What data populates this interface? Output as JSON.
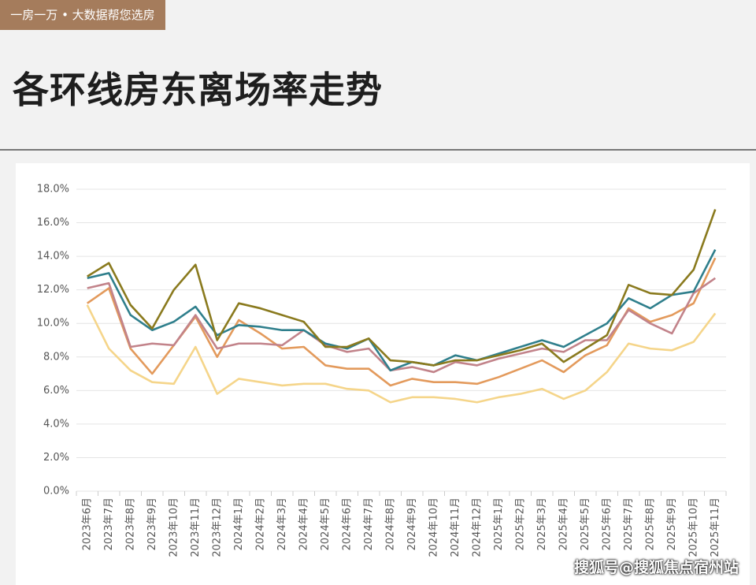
{
  "header": {
    "tag": "一房一万 • 大数据帮您选房",
    "title": "各环线房东离场率走势"
  },
  "watermark": "搜狐号@搜狐焦点宿州站",
  "chart_data": {
    "type": "line",
    "categories": [
      "2023年6月",
      "2023年7月",
      "2023年8月",
      "2023年9月",
      "2023年10月",
      "2023年11月",
      "2023年12月",
      "2024年1月",
      "2024年2月",
      "2024年3月",
      "2024年4月",
      "2024年5月",
      "2024年6月",
      "2024年7月",
      "2024年8月",
      "2024年9月",
      "2024年10月",
      "2024年11月",
      "2024年12月",
      "2025年1月",
      "2025年2月",
      "2025年3月",
      "2025年4月",
      "2025年5月",
      "2025年6月",
      "2025年7月",
      "2025年8月",
      "2025年9月",
      "2025年10月",
      "2025年11月"
    ],
    "series": [
      {
        "color": "#f5d58a",
        "values": [
          11.1,
          8.5,
          7.2,
          6.5,
          6.4,
          8.6,
          5.8,
          6.7,
          6.5,
          6.3,
          6.4,
          6.4,
          6.1,
          6.0,
          5.3,
          5.6,
          5.6,
          5.5,
          5.3,
          5.6,
          5.8,
          6.1,
          5.5,
          6.0,
          7.1,
          8.8,
          8.5,
          8.4,
          8.9,
          10.6
        ]
      },
      {
        "color": "#e39a5c",
        "values": [
          11.2,
          12.1,
          8.5,
          7.0,
          8.7,
          10.4,
          8.0,
          10.2,
          9.4,
          8.5,
          8.6,
          7.5,
          7.3,
          7.3,
          6.3,
          6.7,
          6.5,
          6.5,
          6.4,
          6.8,
          7.3,
          7.8,
          7.1,
          8.1,
          8.7,
          10.9,
          10.1,
          10.5,
          11.2,
          13.9
        ]
      },
      {
        "color": "#c2838a",
        "values": [
          12.1,
          12.4,
          8.6,
          8.8,
          8.7,
          10.5,
          8.5,
          8.8,
          8.8,
          8.7,
          9.6,
          8.7,
          8.3,
          8.5,
          7.2,
          7.4,
          7.1,
          7.7,
          7.5,
          7.9,
          8.2,
          8.5,
          8.3,
          9.0,
          9.0,
          10.8,
          10.0,
          9.4,
          11.8,
          12.7
        ]
      },
      {
        "color": "#2f7f8c",
        "values": [
          12.7,
          13.0,
          10.5,
          9.6,
          10.1,
          11.0,
          9.3,
          9.9,
          9.8,
          9.6,
          9.6,
          8.8,
          8.5,
          9.1,
          7.2,
          7.7,
          7.5,
          8.1,
          7.8,
          8.2,
          8.6,
          9.0,
          8.6,
          9.3,
          10.0,
          11.5,
          10.9,
          11.7,
          11.9,
          14.4
        ]
      },
      {
        "color": "#8a7a1e",
        "values": [
          12.8,
          13.6,
          11.1,
          9.7,
          12.0,
          13.5,
          9.0,
          11.2,
          10.9,
          10.5,
          10.1,
          8.6,
          8.6,
          9.1,
          7.8,
          7.7,
          7.5,
          7.8,
          7.8,
          8.1,
          8.4,
          8.8,
          7.7,
          8.5,
          9.3,
          12.3,
          11.8,
          11.7,
          13.2,
          16.8
        ]
      }
    ],
    "ylim": [
      0,
      18
    ],
    "yticks": [
      {
        "value": 0,
        "label": "0.0%"
      },
      {
        "value": 2,
        "label": "2.0%"
      },
      {
        "value": 4,
        "label": "4.0%"
      },
      {
        "value": 6,
        "label": "6.0%"
      },
      {
        "value": 8,
        "label": "8.0%"
      },
      {
        "value": 10,
        "label": "10.0%"
      },
      {
        "value": 12,
        "label": "12.0%"
      },
      {
        "value": 14,
        "label": "14.0%"
      },
      {
        "value": 16,
        "label": "16.0%"
      },
      {
        "value": 18,
        "label": "18.0%"
      }
    ],
    "grid": true
  }
}
